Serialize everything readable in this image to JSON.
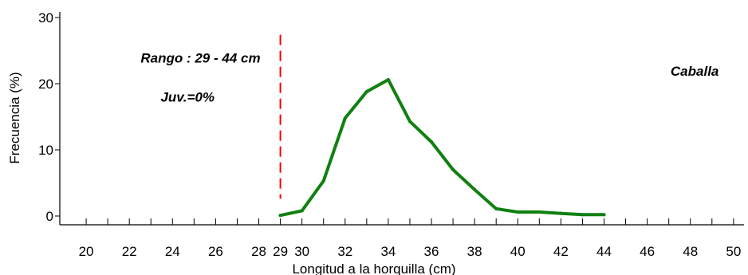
{
  "chart_data": {
    "type": "line",
    "xlabel": "Longitud a la horquilla (cm)",
    "ylabel": "Frecuencia (%)",
    "xlim": [
      19,
      51
    ],
    "ylim": [
      0,
      30
    ],
    "x_ticks": [
      20,
      21,
      22,
      23,
      24,
      25,
      26,
      27,
      28,
      29,
      30,
      31,
      32,
      33,
      34,
      35,
      36,
      37,
      38,
      39,
      40,
      41,
      42,
      43,
      44,
      45,
      46,
      47,
      48,
      49,
      50,
      51
    ],
    "x_tick_labels": [
      {
        "value": 20,
        "label": "20"
      },
      {
        "value": 22,
        "label": "22"
      },
      {
        "value": 24,
        "label": "24"
      },
      {
        "value": 26,
        "label": "26"
      },
      {
        "value": 28,
        "label": "28"
      },
      {
        "value": 29,
        "label": "29"
      },
      {
        "value": 30,
        "label": "30"
      },
      {
        "value": 32,
        "label": "32"
      },
      {
        "value": 34,
        "label": "34"
      },
      {
        "value": 36,
        "label": "36"
      },
      {
        "value": 38,
        "label": "38"
      },
      {
        "value": 40,
        "label": "40"
      },
      {
        "value": 42,
        "label": "42"
      },
      {
        "value": 44,
        "label": "44"
      },
      {
        "value": 46,
        "label": "46"
      },
      {
        "value": 48,
        "label": "48"
      },
      {
        "value": 50,
        "label": "50"
      }
    ],
    "y_ticks": [
      {
        "value": 0,
        "label": "0"
      },
      {
        "value": 10,
        "label": "10"
      },
      {
        "value": 20,
        "label": "20"
      },
      {
        "value": 30,
        "label": "30"
      }
    ],
    "series": [
      {
        "color": "#108010",
        "x": [
          29,
          30,
          31,
          32,
          33,
          34,
          35,
          36,
          37,
          38,
          39,
          40,
          41,
          42,
          43,
          44
        ],
        "values": [
          0.1,
          0.8,
          5.3,
          14.8,
          18.8,
          20.6,
          14.3,
          11.2,
          7.0,
          4.0,
          1.1,
          0.6,
          0.6,
          0.4,
          0.2,
          0.2
        ]
      }
    ],
    "reference_line": {
      "x": 29,
      "y_range": [
        2.6,
        27.4
      ],
      "color": "#ff0000",
      "style": "dashed"
    },
    "annotations": [
      {
        "id": "rango",
        "text": "Rango : 29 - 44 cm",
        "x": 25.3,
        "y": 23.2
      },
      {
        "id": "juv",
        "text": "Juv.=0%",
        "x": 24.7,
        "y": 17.3
      },
      {
        "id": "species",
        "text": "Caballa",
        "x": 48.2,
        "y": 21.2
      }
    ],
    "grid": false
  }
}
